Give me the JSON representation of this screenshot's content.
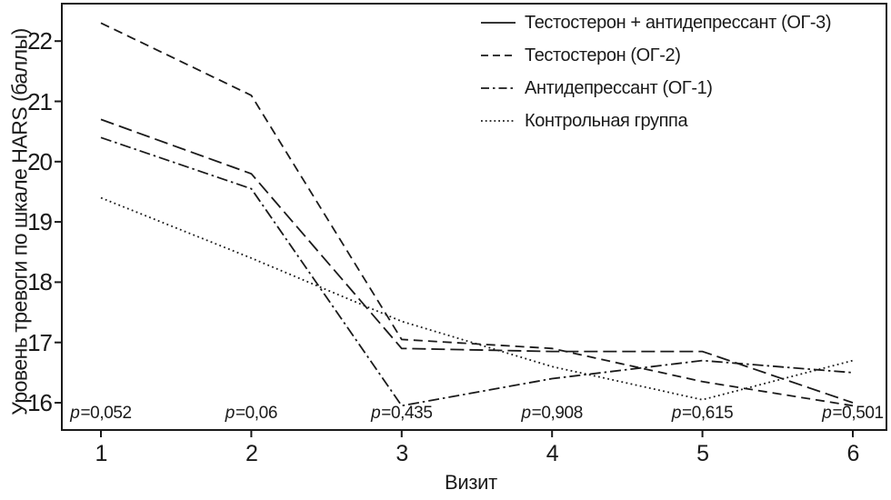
{
  "figure": {
    "background": "#ffffff",
    "ink_color": "#1a1a1a"
  },
  "chart_data": {
    "type": "line",
    "title": "",
    "xlabel": "Визит",
    "ylabel": "Уровень тревоги по шкале HARS (баллы)",
    "grid": false,
    "legend_position": "top-right",
    "x": [
      1,
      2,
      3,
      4,
      5,
      6
    ],
    "x_tick_labels": [
      "1",
      "2",
      "3",
      "4",
      "5",
      "6"
    ],
    "y_tick_values": [
      16,
      17,
      18,
      19,
      20,
      21,
      22
    ],
    "xlim": [
      0.74,
      6.22
    ],
    "ylim": [
      15.55,
      22.62
    ],
    "series": [
      {
        "name": "Тестостерон + антидепрессант (ОГ-3)",
        "linestyle": "solid",
        "values": [
          20.7,
          19.8,
          16.9,
          16.85,
          16.85,
          16.0
        ]
      },
      {
        "name": "Тестостерон (ОГ-2)",
        "linestyle": "dashed",
        "values": [
          22.3,
          21.1,
          17.05,
          16.9,
          16.35,
          15.95
        ]
      },
      {
        "name": "Антидепрессант (ОГ-1)",
        "linestyle": "dashdot",
        "values": [
          20.4,
          19.55,
          15.95,
          16.4,
          16.7,
          16.5
        ]
      },
      {
        "name": "Контрольная группа",
        "linestyle": "dotted",
        "values": [
          19.4,
          18.4,
          17.35,
          16.6,
          16.05,
          16.7
        ]
      }
    ],
    "p_values": {
      "symbol": "p",
      "entries": [
        "=0,052",
        "=0,06",
        "=0,435",
        "=0,908",
        "=0,615",
        "=0,501"
      ]
    }
  }
}
